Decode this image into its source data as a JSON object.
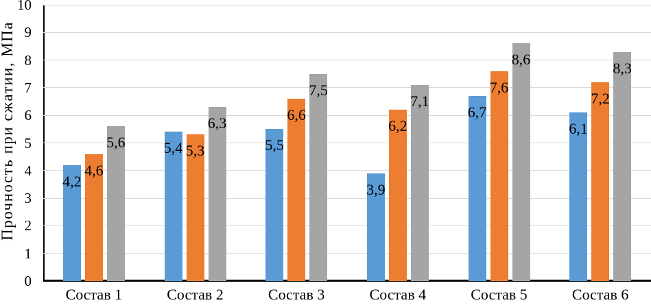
{
  "chart_data": {
    "type": "bar",
    "title": "",
    "ylabel": "Прочность при сжатии, МПа",
    "xlabel": "",
    "ylim": [
      0,
      10
    ],
    "ytick_labels": [
      "0",
      "1",
      "2",
      "3",
      "4",
      "5",
      "6",
      "7",
      "8",
      "9",
      "10"
    ],
    "grid": true,
    "legend_position": "none",
    "gridline_color": "#D9D9D9",
    "axis_color": "#000000",
    "categories": [
      "Состав 1",
      "Состав 2",
      "Состав 3",
      "Состав 4",
      "Состав 5",
      "Состав 6"
    ],
    "series": [
      {
        "color": "#5B9BD5",
        "values": [
          4.2,
          5.4,
          5.5,
          3.9,
          6.7,
          6.1
        ],
        "labels": [
          "4,2",
          "5,4",
          "5,5",
          "3,9",
          "6,7",
          "6,1"
        ]
      },
      {
        "color": "#ED7D31",
        "values": [
          4.6,
          5.3,
          6.6,
          6.2,
          7.6,
          7.2
        ],
        "labels": [
          "4,6",
          "5,3",
          "6,6",
          "6,2",
          "7,6",
          "7,2"
        ]
      },
      {
        "color": "#A5A5A5",
        "values": [
          5.6,
          6.3,
          7.5,
          7.1,
          8.6,
          8.3
        ],
        "labels": [
          "5,6",
          "6,3",
          "7,5",
          "7,1",
          "8,6",
          "8,3"
        ]
      }
    ]
  }
}
